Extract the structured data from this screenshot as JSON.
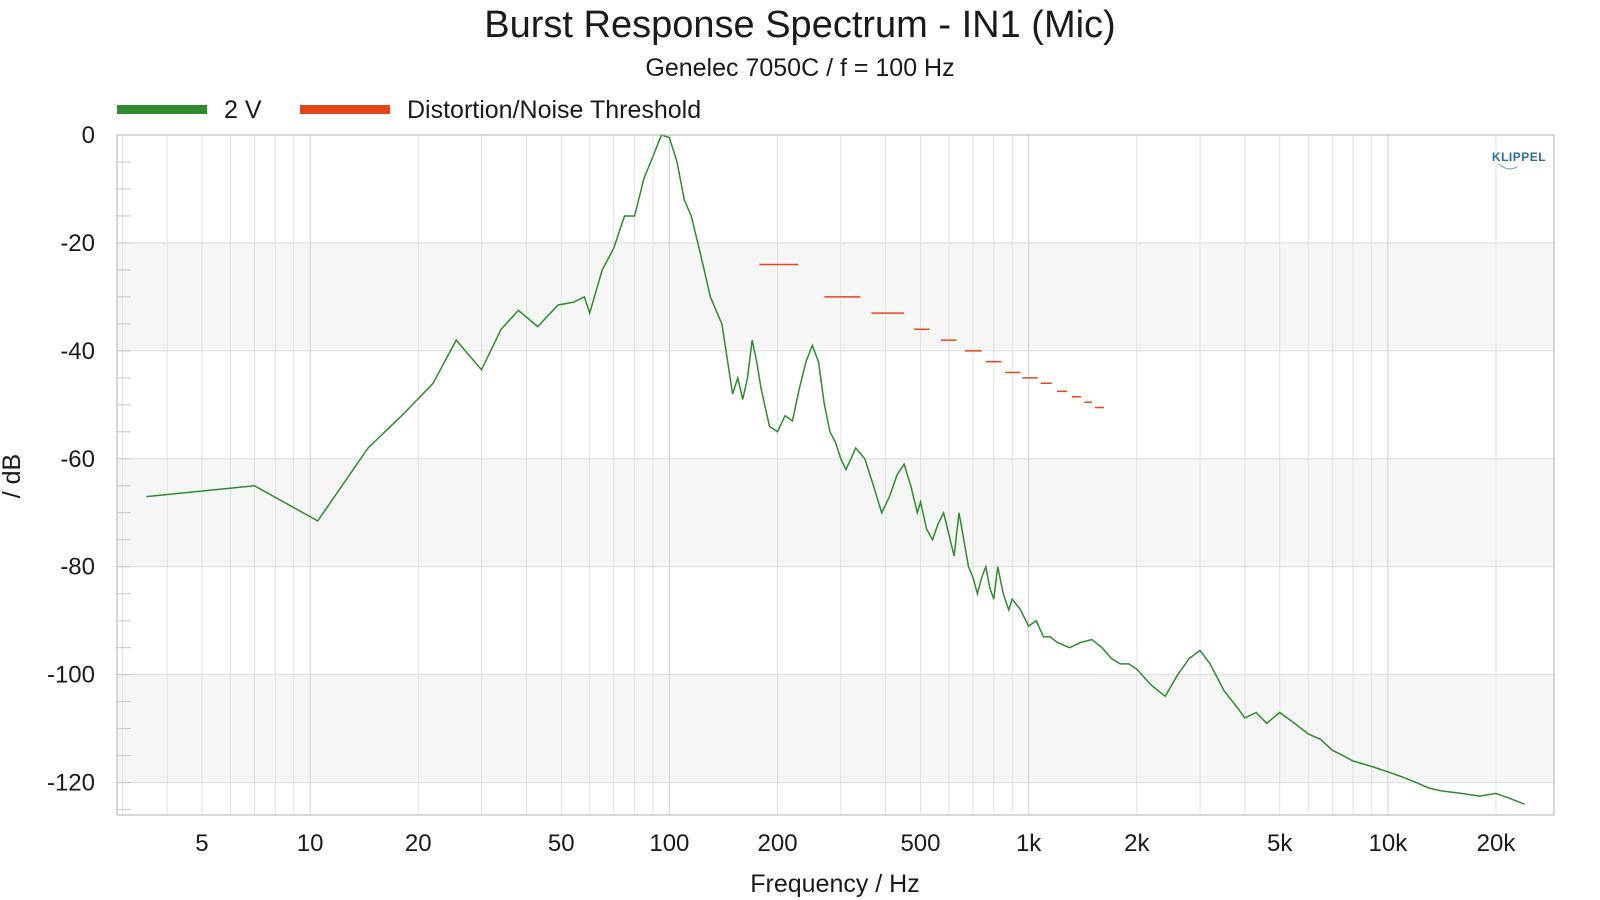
{
  "chart_data": {
    "type": "line",
    "title": "Burst Response Spectrum - IN1 (Mic)",
    "subtitle": "Genelec 7050C / f = 100 Hz",
    "xlabel": "Frequency / Hz",
    "ylabel": "/ dB",
    "x_scale": "log",
    "xlim": [
      2.9,
      29000
    ],
    "ylim": [
      -126,
      0
    ],
    "x_ticks": [
      5,
      10,
      20,
      50,
      100,
      200,
      500,
      1000,
      2000,
      5000,
      10000,
      20000
    ],
    "x_tick_labels": [
      "5",
      "10",
      "20",
      "50",
      "100",
      "200",
      "500",
      "1k",
      "2k",
      "5k",
      "10k",
      "20k"
    ],
    "y_ticks": [
      0,
      -20,
      -40,
      -60,
      -80,
      -100,
      -120
    ],
    "y_tick_labels": [
      "0",
      "-20",
      "-40",
      "-60",
      "-80",
      "-100",
      "-120"
    ],
    "grid": true,
    "legend_position": "top-left",
    "brand": "KLIPPEL",
    "series": [
      {
        "name": "2 V",
        "color": "#2e8b2e",
        "x": [
          3.5,
          7,
          10.5,
          14.5,
          18,
          22,
          25.5,
          30,
          34,
          38,
          43,
          49,
          54,
          58,
          60,
          65,
          70,
          75,
          80,
          85,
          90,
          95,
          100,
          105,
          110,
          115,
          120,
          125,
          130,
          140,
          150,
          155,
          160,
          165,
          170,
          175,
          180,
          190,
          200,
          210,
          220,
          230,
          240,
          250,
          260,
          270,
          280,
          290,
          300,
          310,
          320,
          330,
          350,
          370,
          390,
          410,
          430,
          450,
          470,
          490,
          500,
          520,
          540,
          560,
          580,
          600,
          620,
          640,
          660,
          680,
          700,
          720,
          740,
          760,
          780,
          800,
          820,
          850,
          880,
          900,
          950,
          1000,
          1050,
          1100,
          1150,
          1200,
          1300,
          1400,
          1500,
          1600,
          1700,
          1800,
          1900,
          2000,
          2200,
          2400,
          2600,
          2800,
          3000,
          3200,
          3500,
          3800,
          4000,
          4300,
          4600,
          5000,
          5500,
          6000,
          6500,
          7000,
          7500,
          8000,
          9000,
          10000,
          11000,
          12000,
          13000,
          14000,
          16000,
          18000,
          20000,
          22000,
          24000
        ],
        "y": [
          -67,
          -65,
          -71.5,
          -58,
          -52,
          -46,
          -38,
          -43.5,
          -36,
          -32.5,
          -35.5,
          -31.5,
          -31,
          -30,
          -33,
          -25,
          -21,
          -15,
          -15,
          -8,
          -4,
          0,
          -0.5,
          -5,
          -12,
          -15,
          -20,
          -25,
          -30,
          -35,
          -48,
          -45,
          -49,
          -45,
          -38,
          -42,
          -47,
          -54,
          -55,
          -52,
          -53,
          -47,
          -42,
          -39,
          -42,
          -50,
          -55,
          -57,
          -60,
          -62,
          -60,
          -58,
          -60,
          -65,
          -70,
          -67,
          -63,
          -61,
          -65,
          -70,
          -68,
          -73,
          -75,
          -72,
          -70,
          -74,
          -78,
          -70,
          -75,
          -80,
          -82,
          -85,
          -82,
          -80,
          -84,
          -86,
          -80,
          -85,
          -88,
          -86,
          -88,
          -91,
          -90,
          -93,
          -93,
          -94,
          -95,
          -94,
          -93.5,
          -95,
          -97,
          -98,
          -98,
          -99,
          -102,
          -104,
          -100,
          -97,
          -95.5,
          -98,
          -103,
          -106,
          -108,
          -107,
          -109,
          -107,
          -109,
          -111,
          -112,
          -114,
          -115,
          -116,
          -117,
          -118,
          -119,
          -120,
          -121,
          -121.5,
          -122,
          -122.5,
          -122,
          -123,
          -124
        ]
      },
      {
        "name": "Distortion/Noise Threshold",
        "color": "#e8441a",
        "segments": [
          {
            "x": [
              178,
              228
            ],
            "y": -24
          },
          {
            "x": [
              270,
              340
            ],
            "y": -30
          },
          {
            "x": [
              365,
              450
            ],
            "y": -33
          },
          {
            "x": [
              480,
              530
            ],
            "y": -36
          },
          {
            "x": [
              570,
              630
            ],
            "y": -38
          },
          {
            "x": [
              665,
              740
            ],
            "y": -40
          },
          {
            "x": [
              760,
              840
            ],
            "y": -42
          },
          {
            "x": [
              860,
              950
            ],
            "y": -44
          },
          {
            "x": [
              960,
              1060
            ],
            "y": -45
          },
          {
            "x": [
              1080,
              1160
            ],
            "y": -46
          },
          {
            "x": [
              1200,
              1280
            ],
            "y": -47.5
          },
          {
            "x": [
              1320,
              1400
            ],
            "y": -48.5
          },
          {
            "x": [
              1430,
              1500
            ],
            "y": -49.5
          },
          {
            "x": [
              1530,
              1620
            ],
            "y": -50.5
          }
        ]
      }
    ]
  }
}
